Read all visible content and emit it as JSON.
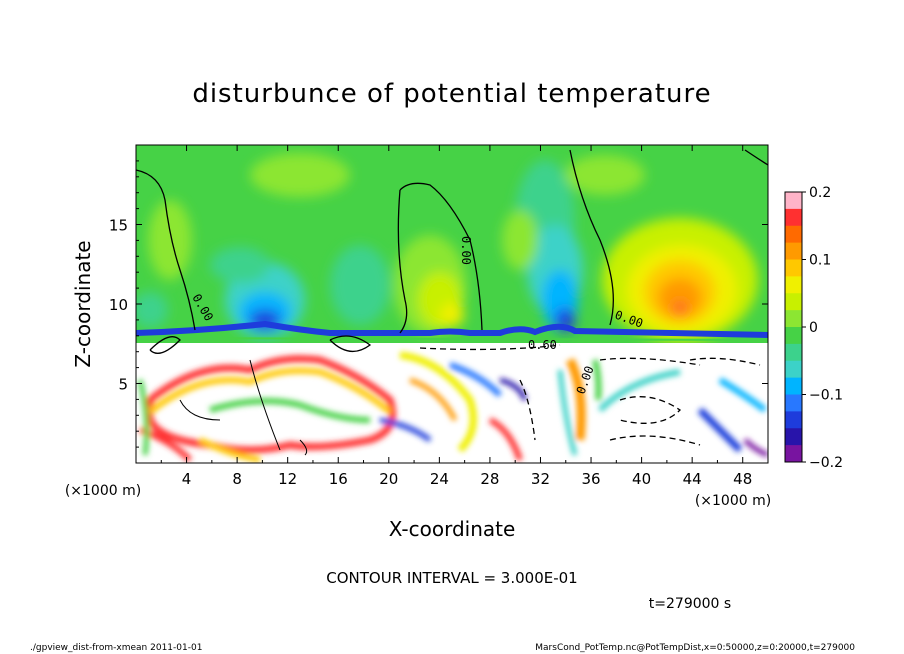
{
  "chart_data": {
    "type": "heatmap",
    "title": "disturbunce of potential temperature",
    "xlabel": "X-coordinate",
    "ylabel": "Z-coordinate",
    "x_unit": "(×1000 m)",
    "z_unit": "(×1000 m)",
    "xlim": [
      0,
      50
    ],
    "ylim": [
      0,
      20
    ],
    "x_ticks": [
      "4",
      "8",
      "12",
      "16",
      "20",
      "24",
      "28",
      "32",
      "36",
      "40",
      "44",
      "48"
    ],
    "x_tick_values": [
      4,
      8,
      12,
      16,
      20,
      24,
      28,
      32,
      36,
      40,
      44,
      48
    ],
    "y_ticks": [
      "5",
      "10",
      "15"
    ],
    "y_tick_values": [
      5,
      10,
      15
    ],
    "colorbar": {
      "range": [
        -0.2,
        0.2
      ],
      "tick_labels": [
        "0.2",
        "0.1",
        "0",
        "−0.1",
        "−0.2"
      ],
      "tick_values": [
        0.2,
        0.1,
        0,
        -0.1,
        -0.2
      ],
      "colors": [
        "#ffb4c8",
        "#ff3030",
        "#ff6a00",
        "#ff9a00",
        "#ffc800",
        "#f0f000",
        "#c8f000",
        "#8ce632",
        "#46d246",
        "#3cd28c",
        "#3cd2c8",
        "#00b4ff",
        "#2878ff",
        "#1e3cdc",
        "#2814aa",
        "#7814a0"
      ]
    },
    "contour_labels": [
      "0.00",
      "0.60",
      "0.00",
      "0.00",
      "0.00"
    ],
    "contour_interval": "CONTOUR INTERVAL = 3.000E-01",
    "time": "t=279000 s"
  },
  "footer": {
    "left": "./gpview_dist-from-xmean 2011-01-01",
    "right": "MarsCond_PotTemp.nc@PotTempDist,x=0:50000,z=0:20000,t=279000"
  },
  "colors": {
    "background": "#ffffff",
    "base_field": "#46d246"
  }
}
